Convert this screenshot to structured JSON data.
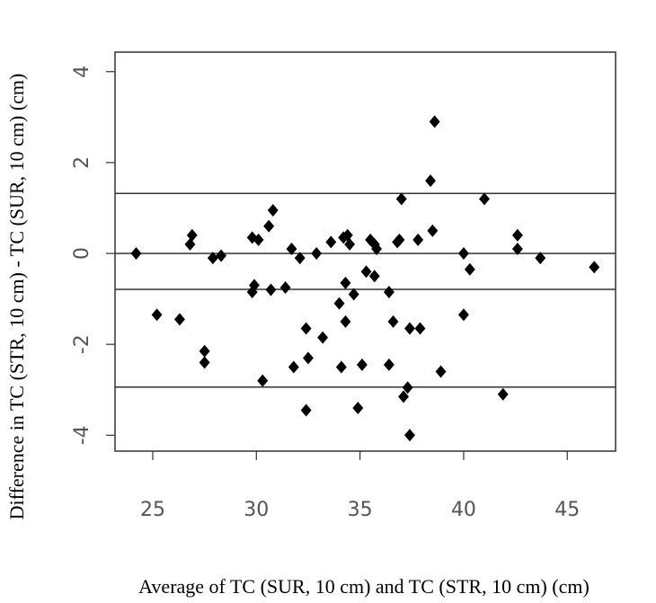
{
  "chart_data": {
    "type": "scatter",
    "x_label": "Average of TC (SUR, 10 cm) and TC (STR, 10 cm) (cm)",
    "y_label": "Difference in  TC (STR, 10 cm) - TC (SUR, 10 cm) (cm)",
    "x": [
      24.2,
      25.2,
      26.3,
      26.8,
      26.9,
      27.5,
      27.5,
      27.9,
      28.3,
      29.8,
      30.1,
      29.8,
      29.9,
      30.3,
      30.6,
      30.8,
      30.7,
      31.4,
      31.7,
      31.8,
      32.1,
      32.4,
      32.5,
      32.4,
      32.9,
      33.2,
      33.6,
      34.0,
      34.1,
      34.2,
      34.4,
      34.3,
      34.3,
      34.5,
      34.7,
      34.9,
      35.1,
      35.3,
      35.5,
      35.7,
      35.8,
      35.7,
      36.4,
      36.4,
      36.6,
      36.8,
      36.9,
      37.0,
      37.1,
      37.3,
      37.4,
      37.4,
      37.8,
      37.9,
      38.4,
      38.5,
      38.6,
      38.9,
      40.0,
      40.0,
      40.3,
      41.0,
      41.9,
      42.6,
      42.6,
      43.7,
      46.3
    ],
    "values": [
      0,
      -1.35,
      -1.45,
      0.2,
      0.4,
      -2.15,
      -2.4,
      -0.1,
      -0.05,
      0.35,
      0.3,
      -0.85,
      -0.7,
      -2.8,
      0.6,
      0.95,
      -0.8,
      -0.75,
      0.1,
      -2.5,
      -0.1,
      -1.65,
      -2.3,
      -3.45,
      0,
      -1.85,
      0.25,
      -1.1,
      -2.5,
      0.35,
      0.4,
      -0.65,
      -1.5,
      0.2,
      -0.9,
      -3.4,
      -2.45,
      -0.4,
      0.3,
      0.2,
      0.1,
      -0.5,
      -0.85,
      -2.45,
      -1.5,
      0.25,
      0.3,
      1.2,
      -3.15,
      -2.95,
      -1.65,
      -4.0,
      0.3,
      -1.65,
      1.6,
      0.5,
      2.9,
      -2.6,
      0,
      -1.35,
      -0.35,
      1.2,
      -3.1,
      0.4,
      0.1,
      -0.1,
      -0.3
    ],
    "reference_lines": [
      0,
      1.32,
      -0.79,
      -2.94
    ],
    "color": "#000000",
    "xlim": [
      23.18,
      47.33
    ],
    "xticks": [
      25,
      30,
      35,
      40,
      45
    ],
    "ylim": [
      -4.35,
      4.43
    ],
    "yticks": [
      -4,
      -2,
      0,
      2,
      4
    ]
  }
}
